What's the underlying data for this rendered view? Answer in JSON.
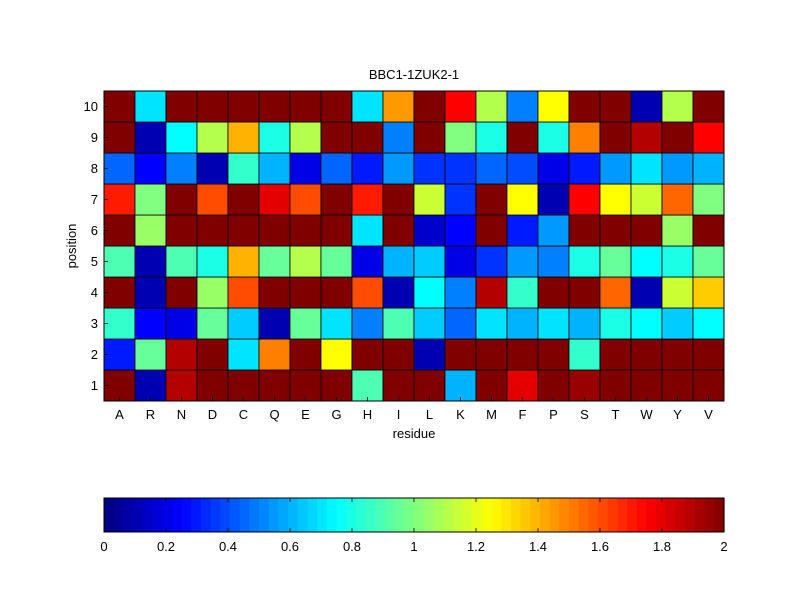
{
  "chart_data": {
    "type": "heatmap",
    "title": "BBC1-1ZUK2-1",
    "xlabel": "residue",
    "ylabel": "position",
    "x_categories": [
      "A",
      "R",
      "N",
      "D",
      "C",
      "Q",
      "E",
      "G",
      "H",
      "I",
      "L",
      "K",
      "M",
      "F",
      "P",
      "S",
      "T",
      "W",
      "Y",
      "V"
    ],
    "y_categories": [
      1,
      2,
      3,
      4,
      5,
      6,
      7,
      8,
      9,
      10
    ],
    "value_range": [
      0,
      2
    ],
    "colormap": "jet",
    "colorbar_ticks": [
      0,
      0.2,
      0.4,
      0.6,
      0.8,
      1,
      1.2,
      1.4,
      1.6,
      1.8,
      2
    ],
    "colorbar_tick_labels": [
      "0",
      "0.2",
      "0.4",
      "0.6",
      "0.8",
      "1",
      "1.2",
      "1.4",
      "1.6",
      "1.8",
      "2"
    ],
    "colorbar_placement": "bottom",
    "grid": true,
    "values_by_position": {
      "10": [
        2.0,
        0.7,
        2.0,
        2.0,
        2.0,
        2.0,
        2.0,
        2.0,
        0.7,
        1.45,
        2.0,
        1.75,
        1.1,
        0.5,
        1.25,
        2.0,
        2.0,
        0.1,
        1.1,
        2.0
      ],
      "9": [
        2.0,
        0.1,
        0.75,
        1.1,
        1.4,
        0.8,
        1.1,
        2.0,
        2.0,
        0.5,
        2.0,
        1.0,
        0.8,
        2.0,
        0.8,
        1.5,
        2.0,
        1.9,
        2.0,
        1.75
      ],
      "8": [
        0.45,
        0.25,
        0.5,
        0.1,
        0.85,
        0.6,
        0.2,
        0.45,
        0.3,
        0.55,
        0.35,
        0.35,
        0.45,
        0.4,
        0.2,
        0.3,
        0.55,
        0.7,
        0.55,
        0.6
      ],
      "7": [
        1.7,
        1.0,
        2.0,
        1.6,
        2.0,
        1.8,
        1.6,
        2.0,
        1.7,
        2.0,
        1.15,
        0.35,
        2.0,
        1.25,
        0.1,
        1.75,
        1.25,
        1.15,
        1.55,
        1.0
      ],
      "6": [
        2.0,
        1.05,
        2.0,
        2.0,
        2.0,
        2.0,
        2.0,
        2.0,
        0.7,
        2.0,
        0.15,
        0.25,
        2.0,
        0.3,
        0.55,
        2.0,
        2.0,
        2.0,
        1.05,
        2.0
      ],
      "5": [
        0.9,
        0.1,
        0.9,
        0.8,
        1.4,
        0.95,
        1.1,
        0.95,
        0.2,
        0.6,
        0.65,
        0.2,
        0.35,
        0.55,
        0.5,
        0.8,
        0.95,
        0.75,
        0.8,
        0.95
      ],
      "4": [
        2.0,
        0.1,
        2.0,
        1.05,
        1.6,
        2.0,
        2.0,
        2.0,
        1.6,
        0.1,
        0.75,
        0.5,
        1.9,
        0.85,
        2.0,
        2.0,
        1.55,
        0.1,
        1.15,
        1.35
      ],
      "3": [
        0.85,
        0.25,
        0.2,
        0.95,
        0.65,
        0.1,
        0.95,
        0.7,
        0.5,
        0.9,
        0.65,
        0.45,
        0.7,
        0.6,
        0.7,
        0.6,
        0.8,
        0.75,
        0.65,
        0.75
      ],
      "2": [
        0.3,
        0.95,
        1.9,
        2.0,
        0.7,
        1.5,
        2.0,
        1.25,
        2.0,
        2.0,
        0.1,
        2.0,
        2.0,
        2.0,
        2.0,
        0.85,
        2.0,
        2.0,
        2.0,
        2.0
      ],
      "1": [
        2.0,
        0.1,
        1.9,
        2.0,
        2.0,
        2.0,
        2.0,
        2.0,
        0.9,
        2.0,
        2.0,
        0.6,
        2.0,
        1.8,
        2.0,
        1.95,
        2.0,
        2.0,
        2.0,
        2.0
      ]
    }
  }
}
